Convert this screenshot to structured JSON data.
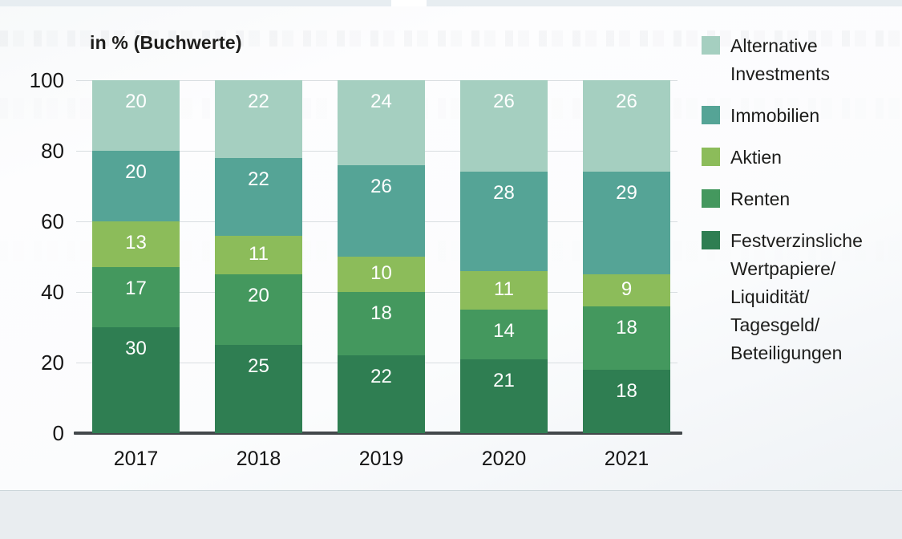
{
  "chart_data": {
    "type": "bar",
    "stacked": true,
    "title": "in % (Buchwerte)",
    "categories": [
      "2017",
      "2018",
      "2019",
      "2020",
      "2021"
    ],
    "series": [
      {
        "name": "Festverzinsliche Wertpapiere/ Liquidität/ Tagesgeld/ Beteiligungen",
        "color": "#2f7e52",
        "values": [
          30,
          25,
          22,
          21,
          18
        ]
      },
      {
        "name": "Renten",
        "color": "#44985e",
        "values": [
          17,
          20,
          18,
          14,
          18
        ]
      },
      {
        "name": "Aktien",
        "color": "#8cbc5a",
        "values": [
          13,
          11,
          10,
          11,
          9
        ]
      },
      {
        "name": "Immobilien",
        "color": "#55a496",
        "values": [
          20,
          22,
          26,
          28,
          29
        ]
      },
      {
        "name": "Alternative Investments",
        "color": "#a5cfc0",
        "values": [
          20,
          22,
          24,
          26,
          26
        ]
      }
    ],
    "ylim": [
      0,
      100
    ],
    "yticks": [
      0,
      20,
      40,
      60,
      80,
      100
    ],
    "grid": true,
    "value_labels": "inside-top, white",
    "legend_position": "right"
  },
  "legend": {
    "items": [
      {
        "label": "Alternative Investments",
        "color": "#a5cfc0"
      },
      {
        "label": "Immobilien",
        "color": "#55a496"
      },
      {
        "label": "Aktien",
        "color": "#8cbc5a"
      },
      {
        "label": "Renten",
        "color": "#44985e"
      },
      {
        "label": "Festverzinsliche Wertpapiere/ Liquidität/ Tagesgeld/ Beteiligungen",
        "color": "#2f7e52"
      }
    ]
  }
}
